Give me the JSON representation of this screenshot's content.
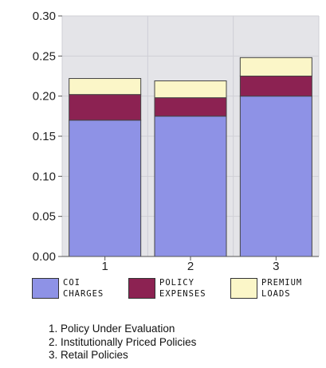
{
  "chart_data": {
    "type": "bar",
    "stacked": true,
    "categories": [
      "1",
      "2",
      "3"
    ],
    "series": [
      {
        "name": "COI CHARGES",
        "values": [
          0.17,
          0.175,
          0.2
        ],
        "color": "#8e92e6"
      },
      {
        "name": "POLICY EXPENSES",
        "values": [
          0.032,
          0.023,
          0.025
        ],
        "color": "#8c2252"
      },
      {
        "name": "PREMIUM LOADS",
        "values": [
          0.02,
          0.021,
          0.023
        ],
        "color": "#fbf6c8"
      }
    ],
    "yticks": [
      "0.00",
      "0.05",
      "0.10",
      "0.15",
      "0.20",
      "0.25",
      "0.30"
    ],
    "ylim": [
      0,
      0.3
    ],
    "grid": true,
    "legend_position": "bottom",
    "plot_background": "#e4e4e8"
  },
  "legend": [
    {
      "line1": "COI",
      "line2": "CHARGES",
      "color": "#8e92e6"
    },
    {
      "line1": "POLICY",
      "line2": "EXPENSES",
      "color": "#8c2252"
    },
    {
      "line1": "PREMIUM",
      "line2": "LOADS",
      "color": "#fbf6c8"
    }
  ],
  "notes": [
    "1. Policy Under Evaluation",
    "2. Institutionally Priced Policies",
    "3. Retail Policies"
  ]
}
